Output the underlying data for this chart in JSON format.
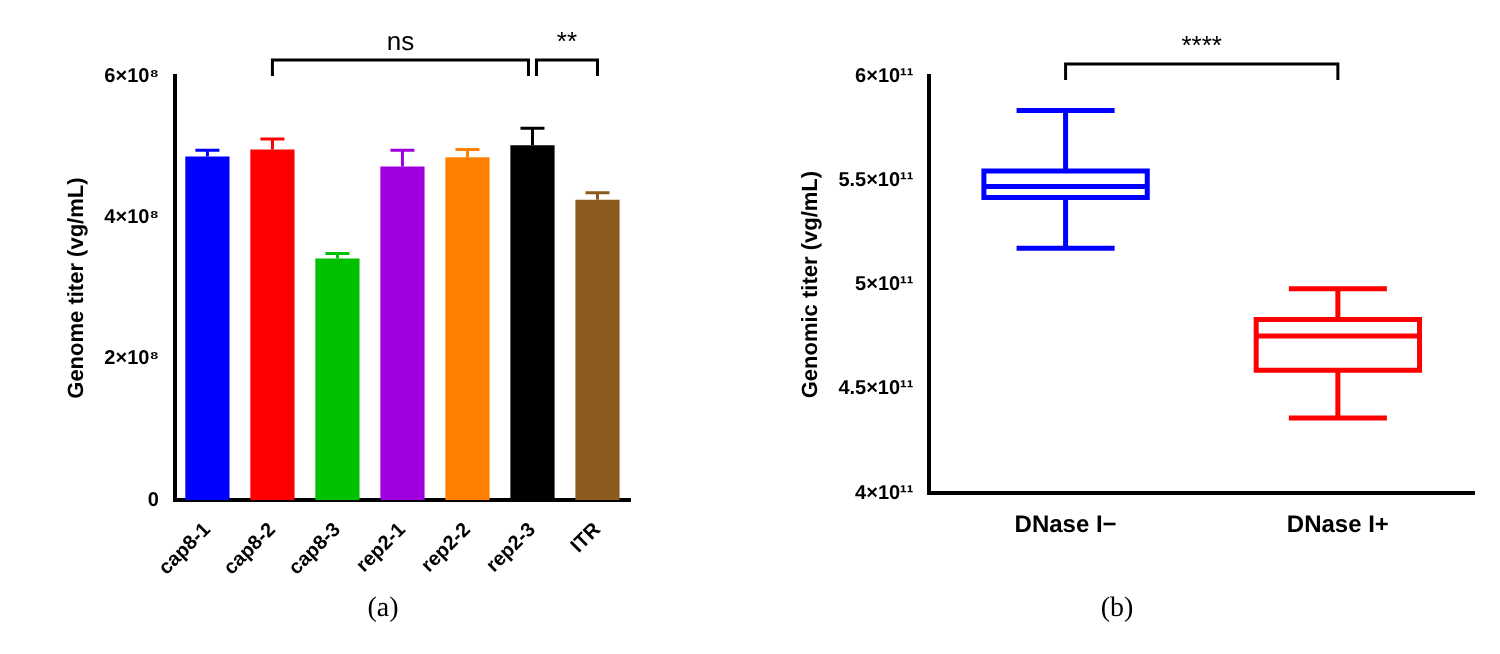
{
  "chart_data": [
    {
      "type": "bar",
      "ylabel": "Genome titer (vg/mL)",
      "categories": [
        "cap8-1",
        "cap8-2",
        "cap8-3",
        "rep2-1",
        "rep2-2",
        "rep2-3",
        "ITR"
      ],
      "values": [
        486000000,
        496000000,
        342000000,
        472000000,
        485000000,
        502000000,
        425000000
      ],
      "colors": [
        "#0000ff",
        "#ff0000",
        "#00c000",
        "#a000e0",
        "#ff8000",
        "#000000",
        "#8b5a1e"
      ],
      "errors": [
        [
          486000000,
          495000000
        ],
        [
          496000000,
          511000000
        ],
        [
          342000000,
          349000000
        ],
        [
          472000000,
          495000000
        ],
        [
          485000000,
          496000000
        ],
        [
          502000000,
          526000000
        ],
        [
          425000000,
          435000000
        ]
      ],
      "ylim": [
        0,
        600000000
      ],
      "yticks": [
        {
          "value": 0,
          "label": "0"
        },
        {
          "value": 200000000,
          "label": "2×10⁸"
        },
        {
          "value": 400000000,
          "label": "4×10⁸"
        },
        {
          "value": 600000000,
          "label": "6×10⁸"
        }
      ],
      "grid": false,
      "legend": false,
      "annotations": [
        "ns",
        "**",
        "(a)"
      ]
    },
    {
      "type": "box",
      "ylabel": "Genomic titer (vg/mL)",
      "categories": [
        "DNase I−",
        "DNase I+"
      ],
      "boxes": [
        {
          "low": 517400000000,
          "q1": 541800000000,
          "median": 547000000000,
          "q3": 554400000000,
          "high": 583500000000
        },
        {
          "low": 436000000000,
          "q1": 459000000000,
          "median": 475400000000,
          "q3": 483300000000,
          "high": 498000000000
        }
      ],
      "colors": [
        "#0000ff",
        "#ff0000"
      ],
      "ylim": [
        400000000000,
        600000000000
      ],
      "yticks": [
        {
          "value": 400000000000,
          "label": "4×10¹¹"
        },
        {
          "value": 450000000000,
          "label": "4.5×10¹¹"
        },
        {
          "value": 500000000000,
          "label": "5×10¹¹"
        },
        {
          "value": 550000000000,
          "label": "5.5×10¹¹"
        },
        {
          "value": 600000000000,
          "label": "6×10¹¹"
        }
      ],
      "grid": false,
      "legend": false,
      "annotations": [
        "****",
        "(b)"
      ]
    }
  ]
}
